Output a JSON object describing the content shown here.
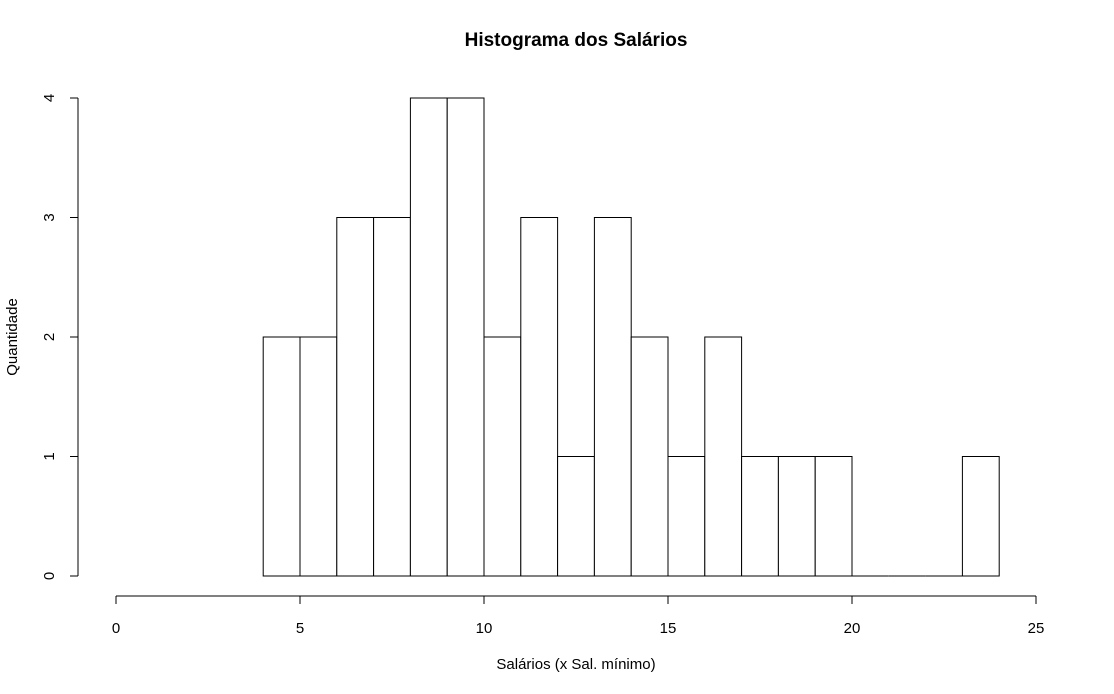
{
  "chart_data": {
    "type": "bar",
    "title": "Histograma dos Salários",
    "xlabel": "Salários (x Sal. mínimo)",
    "ylabel": "Quantidade",
    "bins": [
      {
        "from": 4,
        "to": 5,
        "count": 2
      },
      {
        "from": 5,
        "to": 6,
        "count": 2
      },
      {
        "from": 6,
        "to": 7,
        "count": 3
      },
      {
        "from": 7,
        "to": 8,
        "count": 3
      },
      {
        "from": 8,
        "to": 9,
        "count": 4
      },
      {
        "from": 9,
        "to": 10,
        "count": 4
      },
      {
        "from": 10,
        "to": 11,
        "count": 2
      },
      {
        "from": 11,
        "to": 12,
        "count": 3
      },
      {
        "from": 12,
        "to": 13,
        "count": 1
      },
      {
        "from": 13,
        "to": 14,
        "count": 3
      },
      {
        "from": 14,
        "to": 15,
        "count": 2
      },
      {
        "from": 15,
        "to": 16,
        "count": 1
      },
      {
        "from": 16,
        "to": 17,
        "count": 2
      },
      {
        "from": 17,
        "to": 18,
        "count": 1
      },
      {
        "from": 18,
        "to": 19,
        "count": 1
      },
      {
        "from": 19,
        "to": 20,
        "count": 1
      },
      {
        "from": 20,
        "to": 21,
        "count": 0
      },
      {
        "from": 21,
        "to": 22,
        "count": 0
      },
      {
        "from": 22,
        "to": 23,
        "count": 0
      },
      {
        "from": 23,
        "to": 24,
        "count": 1
      }
    ],
    "xlim": [
      0,
      25
    ],
    "ylim": [
      0,
      4
    ],
    "x_ticks": [
      "0",
      "5",
      "10",
      "15",
      "20",
      "25"
    ],
    "y_ticks": [
      "0",
      "1",
      "2",
      "3",
      "4"
    ],
    "grid": false
  }
}
